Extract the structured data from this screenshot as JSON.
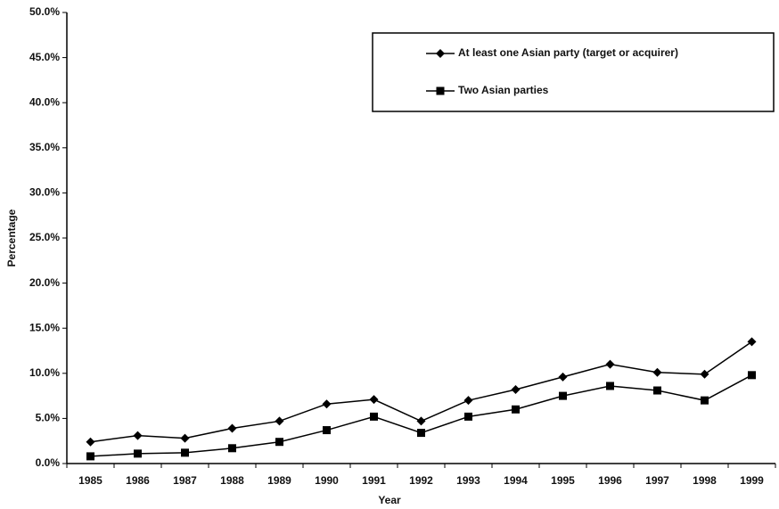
{
  "chart_data": {
    "type": "line",
    "x_label": "Year",
    "y_label": "Percentage",
    "categories": [
      "1985",
      "1986",
      "1987",
      "1988",
      "1989",
      "1990",
      "1991",
      "1992",
      "1993",
      "1994",
      "1995",
      "1996",
      "1997",
      "1998",
      "1999"
    ],
    "series": [
      {
        "name": "At least one Asian party (target or acquirer)",
        "color": "#000000",
        "marker": "diamond",
        "values": [
          2.4,
          3.1,
          2.8,
          3.9,
          4.7,
          6.6,
          7.1,
          4.7,
          7.0,
          8.2,
          9.6,
          11.0,
          10.1,
          9.9,
          13.5
        ]
      },
      {
        "name": "Two Asian parties",
        "color": "#000000",
        "marker": "square",
        "values": [
          0.8,
          1.1,
          1.2,
          1.7,
          2.4,
          3.7,
          5.2,
          3.4,
          5.2,
          6.0,
          7.5,
          8.6,
          8.1,
          7.0,
          9.8
        ]
      }
    ],
    "ylim": [
      0,
      50
    ],
    "yticks": [
      {
        "value": 0,
        "label": "0.0%"
      },
      {
        "value": 5,
        "label": "5.0%"
      },
      {
        "value": 10,
        "label": "10.0%"
      },
      {
        "value": 15,
        "label": "15.0%"
      },
      {
        "value": 20,
        "label": "20.0%"
      },
      {
        "value": 25,
        "label": "25.0%"
      },
      {
        "value": 30,
        "label": "30.0%"
      },
      {
        "value": 35,
        "label": "35.0%"
      },
      {
        "value": 40,
        "label": "40.0%"
      },
      {
        "value": 45,
        "label": "45.0%"
      },
      {
        "value": 50,
        "label": "50.0%"
      }
    ],
    "grid": false,
    "legend": "upper right"
  }
}
